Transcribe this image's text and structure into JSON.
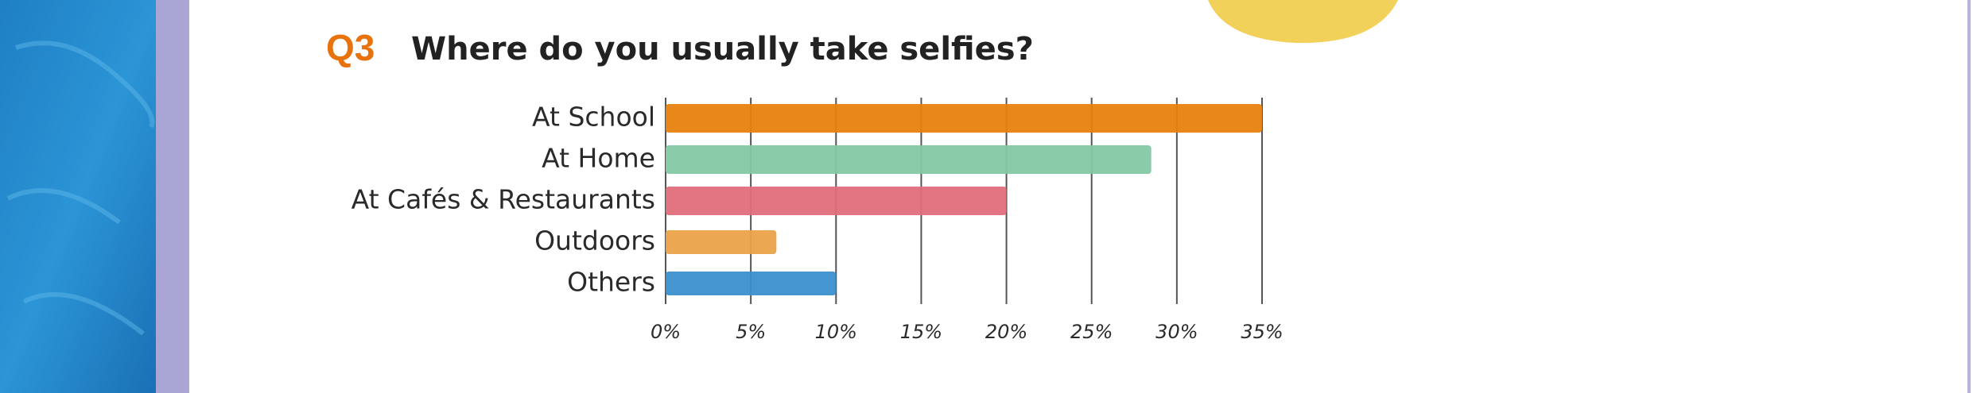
{
  "chart_data": {
    "type": "hbar",
    "question": "Q3",
    "title": "Where do you usually take selfies?",
    "categories": [
      "At School",
      "At Home",
      "At Cafés & Restaurants",
      "Outdoors",
      "Others"
    ],
    "values": [
      35,
      28.5,
      20,
      6.5,
      10
    ],
    "colors": [
      "#e8820e",
      "#84c8a4",
      "#e06e7a",
      "#eba24a",
      "#3b8fcf"
    ],
    "xlim": [
      0,
      35
    ],
    "xticks": [
      {
        "value": 0,
        "label": "0%"
      },
      {
        "value": 5,
        "label": "5%"
      },
      {
        "value": 10,
        "label": "10%"
      },
      {
        "value": 15,
        "label": "15%"
      },
      {
        "value": 20,
        "label": "20%"
      },
      {
        "value": 25,
        "label": "25%"
      },
      {
        "value": 30,
        "label": "30%"
      },
      {
        "value": 35,
        "label": "35%"
      }
    ],
    "grid": true
  }
}
